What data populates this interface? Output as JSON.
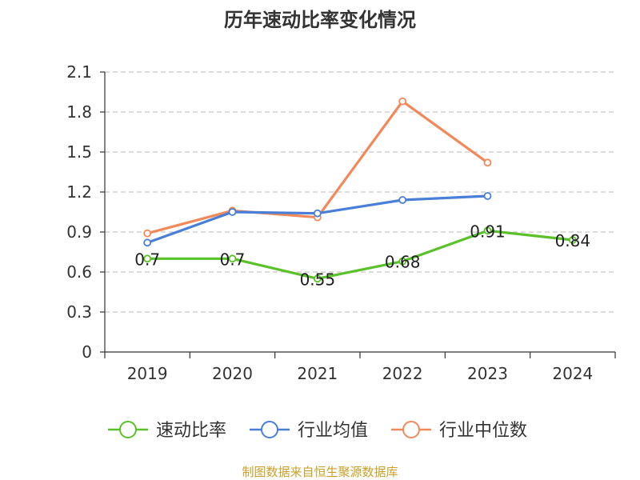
{
  "chart_data": {
    "type": "line",
    "title": "历年速动比率变化情况",
    "categories": [
      "2019",
      "2020",
      "2021",
      "2022",
      "2023",
      "2024"
    ],
    "ylim": [
      0,
      2.1
    ],
    "yticks": [
      "0",
      "0.3",
      "0.6",
      "0.9",
      "1.2",
      "1.5",
      "1.8",
      "2.1"
    ],
    "ytick_values": [
      0,
      0.3,
      0.6,
      0.9,
      1.2,
      1.5,
      1.8,
      2.1
    ],
    "series": [
      {
        "name": "速动比率",
        "color": "#5bc12a",
        "values": [
          0.7,
          0.7,
          0.55,
          0.68,
          0.91,
          0.84
        ],
        "labels": [
          "0.7",
          "0.7",
          "0.55",
          "0.68",
          "0.91",
          "0.84"
        ]
      },
      {
        "name": "行业均值",
        "color": "#4a7fd8",
        "values": [
          0.82,
          1.05,
          1.04,
          1.14,
          1.17,
          null
        ]
      },
      {
        "name": "行业中位数",
        "color": "#f2895a",
        "values": [
          0.89,
          1.06,
          1.01,
          1.88,
          1.42,
          null
        ]
      }
    ],
    "grid": true,
    "legend_position": "bottom"
  },
  "source_text": "制图数据来自恒生聚源数据库"
}
